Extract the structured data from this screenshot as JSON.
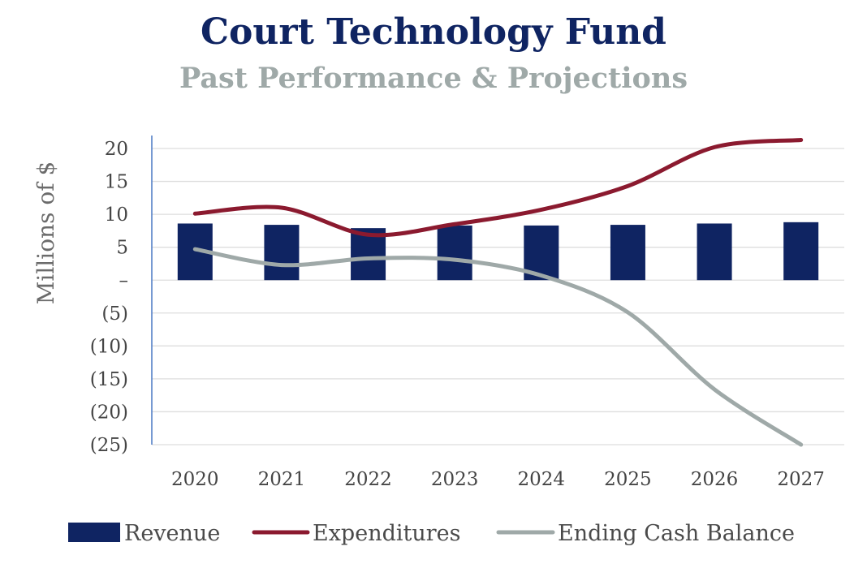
{
  "chart_data": {
    "type": "bar+line",
    "title": "Court Technology Fund",
    "subtitle": "Past Performance & Projections",
    "ylabel": "Millions of $",
    "xlabel": "",
    "categories": [
      "2020",
      "2021",
      "2022",
      "2023",
      "2024",
      "2025",
      "2026",
      "2027"
    ],
    "ylim": [
      -25,
      20
    ],
    "yticks": [
      20,
      15,
      10,
      5,
      0,
      -5,
      -10,
      -15,
      -20,
      -25
    ],
    "ytick_labels": [
      "20",
      "15",
      "10",
      "5",
      "–",
      "(5)",
      "(10)",
      "(15)",
      "(20)",
      "(25)"
    ],
    "grid": true,
    "legend_position": "bottom",
    "series": [
      {
        "name": "Revenue",
        "kind": "bar",
        "color": "#0f2462",
        "values": [
          8.6,
          8.4,
          7.9,
          8.3,
          8.3,
          8.4,
          8.6,
          8.8
        ]
      },
      {
        "name": "Expenditures",
        "kind": "line",
        "color": "#8b1a2f",
        "values": [
          10.1,
          11.0,
          6.9,
          8.5,
          10.7,
          14.3,
          20.2,
          21.3
        ]
      },
      {
        "name": "Ending Cash Balance",
        "kind": "line",
        "color": "#9fa9a8",
        "values": [
          4.7,
          2.3,
          3.3,
          3.1,
          0.7,
          -4.9,
          -16.6,
          -25
        ]
      }
    ]
  }
}
